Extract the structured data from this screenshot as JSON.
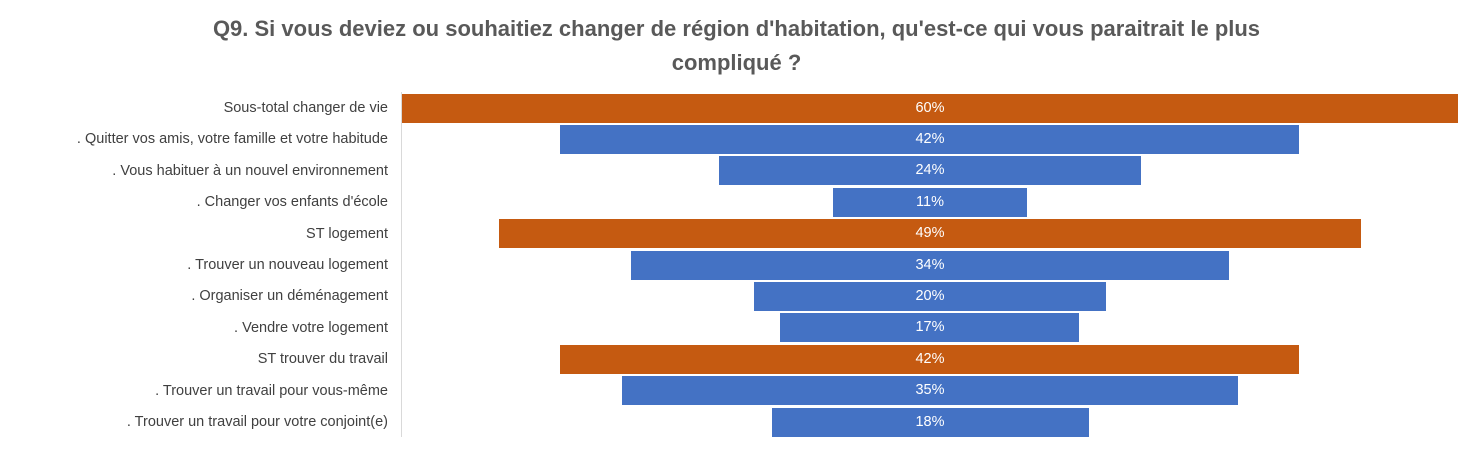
{
  "chart_data": {
    "type": "bar",
    "orientation": "horizontal-centered",
    "title": "Q9. Si vous deviez ou souhaitiez changer de région d'habitation, qu'est-ce qui vous paraitrait  le plus compliqué ?",
    "title_lines": [
      "Q9. Si vous deviez ou souhaitiez changer de région d'habitation, qu'est-ce qui vous paraitrait  le plus",
      "compliqué ?"
    ],
    "xlabel": "",
    "ylabel": "",
    "unit": "%",
    "xlim": [
      0,
      60
    ],
    "grid": false,
    "legend": "none",
    "categories": [
      "Sous-total changer de vie",
      ". Quitter vos amis, votre famille et votre habitude",
      ". Vous habituer à un nouvel environnement",
      ". Changer vos enfants d'école",
      "ST logement",
      ". Trouver un nouveau logement",
      ". Organiser un déménagement",
      ". Vendre votre logement",
      "ST trouver du travail",
      ". Trouver un travail pour vous-même",
      ". Trouver un travail pour votre conjoint(e)"
    ],
    "values": [
      60,
      42,
      24,
      11,
      49,
      34,
      20,
      17,
      42,
      35,
      18
    ],
    "labels": [
      "60%",
      "42%",
      "24%",
      "11%",
      "49%",
      "34%",
      "20%",
      "17%",
      "42%",
      "35%",
      "18%"
    ],
    "kinds": [
      "subtotal",
      "item",
      "item",
      "item",
      "subtotal",
      "item",
      "item",
      "item",
      "subtotal",
      "item",
      "item"
    ],
    "colors": {
      "subtotal": "#c55a11",
      "item": "#4472c4",
      "title": "#595959",
      "category_text": "#404040",
      "value_text": "#ffffff",
      "axis": "#d9d9d9"
    }
  }
}
